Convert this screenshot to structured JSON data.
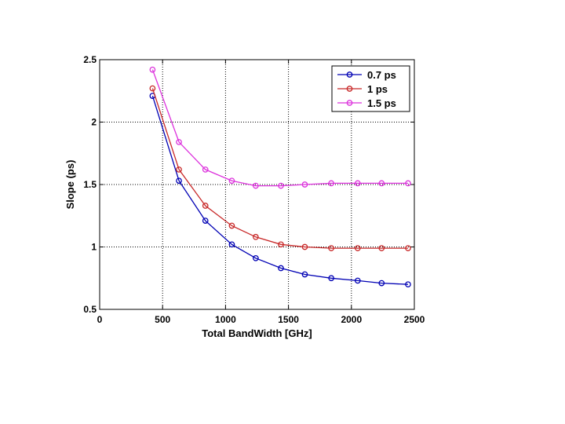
{
  "chart_data": {
    "type": "line",
    "xlabel": "Total BandWidth [GHz]",
    "ylabel": "Slope (ps)",
    "xlim": [
      0,
      2500
    ],
    "ylim": [
      0.5,
      2.5
    ],
    "xticks": [
      0,
      500,
      1000,
      1500,
      2000,
      2500
    ],
    "yticks": [
      0.5,
      1,
      1.5,
      2,
      2.5
    ],
    "xtick_labels": [
      "0",
      "500",
      "1000",
      "1500",
      "2000",
      "2500"
    ],
    "ytick_labels": [
      "0.5",
      "1",
      "1.5",
      "2",
      "2.5"
    ],
    "grid": true,
    "grid_style": "dotted",
    "legend_position": "top-right",
    "marker": "circle",
    "series": [
      {
        "name": "0.7 ps",
        "color": "#0000b4",
        "x": [
          420,
          630,
          840,
          1050,
          1240,
          1440,
          1630,
          1840,
          2050,
          2240,
          2450
        ],
        "y": [
          2.21,
          1.53,
          1.21,
          1.02,
          0.91,
          0.83,
          0.78,
          0.75,
          0.73,
          0.71,
          0.7
        ]
      },
      {
        "name": "1 ps",
        "color": "#c82828",
        "x": [
          420,
          630,
          840,
          1050,
          1240,
          1440,
          1630,
          1840,
          2050,
          2240,
          2450
        ],
        "y": [
          2.27,
          1.62,
          1.33,
          1.17,
          1.08,
          1.02,
          1.0,
          0.99,
          0.99,
          0.99,
          0.99
        ]
      },
      {
        "name": "1.5 ps",
        "color": "#dc32dc",
        "x": [
          420,
          630,
          840,
          1050,
          1240,
          1440,
          1630,
          1840,
          2050,
          2240,
          2450
        ],
        "y": [
          2.42,
          1.84,
          1.62,
          1.53,
          1.49,
          1.49,
          1.5,
          1.51,
          1.51,
          1.51,
          1.51
        ]
      }
    ]
  }
}
